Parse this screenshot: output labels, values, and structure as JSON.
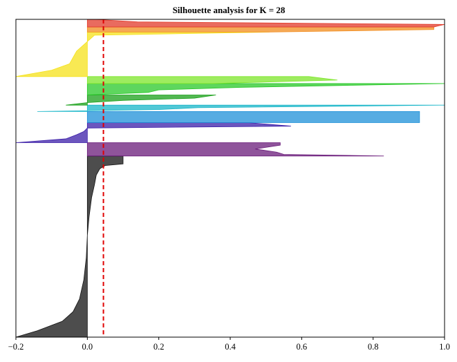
{
  "chart_data": {
    "type": "area",
    "title": "Silhouette analysis for K = 28",
    "xlabel": "",
    "ylabel": "",
    "xlim": [
      -0.2,
      1.0
    ],
    "ylim": [
      0,
      100
    ],
    "x_ticks": [
      -0.2,
      0.0,
      0.2,
      0.4,
      0.6,
      0.8,
      1.0
    ],
    "x_tick_labels": [
      "−0.2",
      "0.0",
      "0.2",
      "0.4",
      "0.6",
      "0.8",
      "1.0"
    ],
    "y_ticks_shown": false,
    "grid": false,
    "legend": "none",
    "average_silhouette": 0.045,
    "average_line_color": "#e00000",
    "clusters": [
      {
        "color": "#111111",
        "y_start": 0.0,
        "y_end": 57.0,
        "profile": [
          [
            0,
            -0.2
          ],
          [
            2,
            -0.14
          ],
          [
            5,
            -0.07
          ],
          [
            8,
            -0.04
          ],
          [
            12,
            -0.022
          ],
          [
            18,
            -0.01
          ],
          [
            25,
            -0.003
          ],
          [
            32,
            0.0
          ],
          [
            38,
            0.005
          ],
          [
            44,
            0.012
          ],
          [
            48,
            0.02
          ],
          [
            51,
            0.025
          ],
          [
            53,
            0.035
          ],
          [
            54,
            0.05
          ],
          [
            54.5,
            0.1
          ],
          [
            57,
            0.1
          ]
        ]
      },
      {
        "color": "#6a1b7a",
        "y_start": 57.0,
        "y_end": 61.2,
        "profile": [
          [
            0,
            0.83
          ],
          [
            0.5,
            0.55
          ],
          [
            1.2,
            0.53
          ],
          [
            2.2,
            0.47
          ],
          [
            3.4,
            0.54
          ],
          [
            4.2,
            0.54
          ]
        ]
      },
      {
        "color": "#3b1ea8",
        "y_start": 61.2,
        "y_end": 67.5,
        "profile": [
          [
            0,
            -0.2
          ],
          [
            1.2,
            -0.06
          ],
          [
            2.5,
            -0.03
          ],
          [
            3.5,
            -0.01
          ],
          [
            4.6,
            0.0
          ],
          [
            5.2,
            0.57
          ],
          [
            6.3,
            0.45
          ]
        ]
      },
      {
        "color": "#1e90d8",
        "y_start": 67.5,
        "y_end": 71.0,
        "profile": [
          [
            0,
            0.93
          ],
          [
            3.5,
            0.93
          ]
        ]
      },
      {
        "color": "#17b5c8",
        "y_start": 71.0,
        "y_end": 73.0,
        "profile": [
          [
            0,
            -0.14
          ],
          [
            0.6,
            0.2
          ],
          [
            1.2,
            0.31
          ],
          [
            2.0,
            1.0
          ]
        ]
      },
      {
        "color": "#1aa01a",
        "y_start": 73.0,
        "y_end": 76.2,
        "profile": [
          [
            0,
            -0.06
          ],
          [
            0.8,
            0.0
          ],
          [
            1.5,
            0.1
          ],
          [
            2.2,
            0.3
          ],
          [
            3.2,
            0.36
          ]
        ]
      },
      {
        "color": "#28c828",
        "y_start": 76.2,
        "y_end": 79.8,
        "profile": [
          [
            0,
            0.0
          ],
          [
            0.8,
            0.17
          ],
          [
            1.6,
            0.2
          ],
          [
            2.4,
            0.43
          ],
          [
            3.6,
            1.0
          ]
        ]
      },
      {
        "color": "#7ee62a",
        "y_start": 79.8,
        "y_end": 82.0,
        "profile": [
          [
            0,
            0.35
          ],
          [
            1.1,
            0.7
          ],
          [
            2.2,
            0.62
          ]
        ]
      },
      {
        "color": "#f5e21a",
        "y_start": 82.0,
        "y_end": 96.0,
        "profile": [
          [
            0,
            -0.2
          ],
          [
            2,
            -0.1
          ],
          [
            4,
            -0.05
          ],
          [
            6,
            -0.04
          ],
          [
            8,
            -0.03
          ],
          [
            10,
            -0.01
          ],
          [
            11,
            0.0
          ],
          [
            12,
            0.01
          ],
          [
            13,
            0.02
          ],
          [
            14,
            0.51
          ]
        ]
      },
      {
        "color": "#f28c1e",
        "y_start": 96.0,
        "y_end": 97.6,
        "profile": [
          [
            0,
            0.51
          ],
          [
            0.8,
            0.97
          ],
          [
            1.6,
            0.97
          ]
        ]
      },
      {
        "color": "#e23a2a",
        "y_start": 97.6,
        "y_end": 100.0,
        "profile": [
          [
            0,
            0.97
          ],
          [
            0.8,
            1.0
          ],
          [
            1.6,
            0.14
          ],
          [
            2.4,
            0.02
          ]
        ]
      }
    ]
  }
}
